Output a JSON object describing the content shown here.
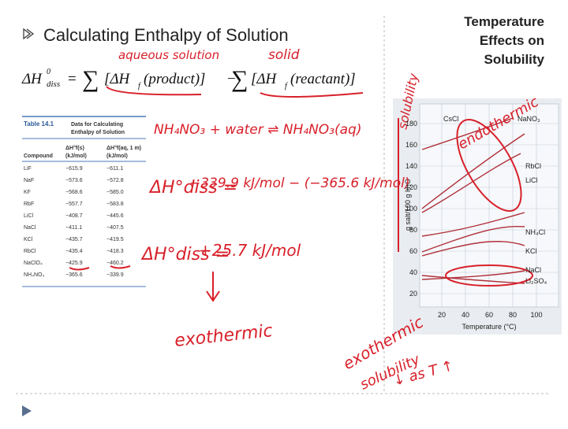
{
  "left": {
    "title": "Calculating Enthalpy of Solution",
    "equation": {
      "lhs": "ΔH",
      "sup": "0",
      "sub": "diss",
      "eq": "=",
      "sum": "∑",
      "term1": "[ΔH",
      "f": "f",
      "product": "(product)]",
      "minus": "−",
      "reactant": "(reactant)]"
    }
  },
  "table": {
    "label": "Table 14.1",
    "caption": [
      "Data for Calculating",
      "Enthalpy of Solution"
    ],
    "columns": [
      "Compound",
      "ΔH°f(s)",
      "ΔH°f(aq, 1 m)"
    ],
    "units": [
      "(kJ/mol)",
      "(kJ/mol)"
    ],
    "rows": [
      [
        "LiF",
        "−615.9",
        "−611.1"
      ],
      [
        "NaF",
        "−573.6",
        "−572.8"
      ],
      [
        "KF",
        "−568.6",
        "−585.0"
      ],
      [
        "RbF",
        "−557.7",
        "−583.8"
      ],
      [
        "LiCl",
        "−408.7",
        "−445.6"
      ],
      [
        "NaCl",
        "−411.1",
        "−407.5"
      ],
      [
        "KCl",
        "−435.7",
        "−419.5"
      ],
      [
        "RbCl",
        "−435.4",
        "−418.3"
      ],
      [
        "NaClO₄",
        "−425.9",
        "−460.2"
      ],
      [
        "NH₄NO₃",
        "−365.6",
        "−339.9"
      ]
    ]
  },
  "right": {
    "title": [
      "Temperature",
      "Effects on",
      "Solubility"
    ]
  },
  "chart": {
    "ylabel": "g salt/100 g H₂O",
    "xlabel": "Temperature (°C)",
    "yticks": [
      "180",
      "160",
      "140",
      "120",
      "100",
      "80",
      "60",
      "40",
      "20"
    ],
    "xticks": [
      "20",
      "40",
      "60",
      "80",
      "100"
    ],
    "curve_labels": [
      "CsCl",
      "NaNO₃",
      "RbCl",
      "LiCl",
      "NH₄Cl",
      "KCl",
      "NaCl",
      "Li₂SO₄"
    ]
  },
  "annotations": {
    "aqueous": "aqueous solution",
    "solid": "solid",
    "reaction": "NH₄NO₃ + water ⇌ NH₄NO₃(aq)",
    "delta1": "ΔH°diss =",
    "calc": "−339.9 kJ/mol − (−365.6 kJ/mol)",
    "delta2": "ΔH°diss =",
    "result": "+25.7 kJ/mol",
    "exo1": "exothermic",
    "solubility": "solubility",
    "endo": "endothermic",
    "exo2": [
      "exothermic",
      "solubility",
      "↓ as T ↑"
    ]
  }
}
